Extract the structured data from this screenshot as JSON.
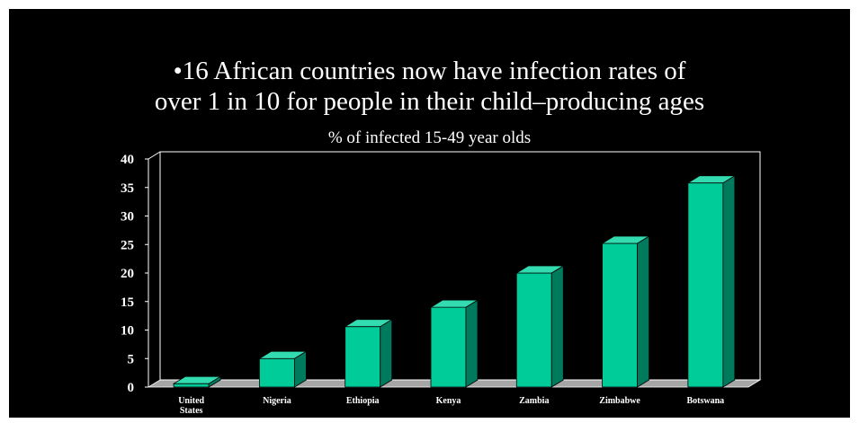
{
  "slide": {
    "headline_line1": "•16 African countries now have infection rates of",
    "headline_line2": "over 1 in 10 for people in their child–producing ages",
    "background_color": "#000000",
    "text_color": "#ffffff"
  },
  "chart_data": {
    "type": "bar",
    "title": "% of infected 15-49 year olds",
    "xlabel": "",
    "ylabel": "",
    "categories": [
      "United States",
      "Nigeria",
      "Ethiopia",
      "Kenya",
      "Zambia",
      "Zimbabwe",
      "Botswana"
    ],
    "values": [
      0.6,
      5,
      10.6,
      14,
      20,
      25.2,
      35.8
    ],
    "ylim": [
      0,
      40
    ],
    "yticks": [
      0,
      5,
      10,
      15,
      20,
      25,
      30,
      35,
      40
    ],
    "grid": false,
    "legend": "none",
    "style": "3d",
    "bar_colors": {
      "front": "#00cc99",
      "side": "#007a5c",
      "top": "#33dcb0",
      "floor": "#a6a6a6"
    }
  }
}
